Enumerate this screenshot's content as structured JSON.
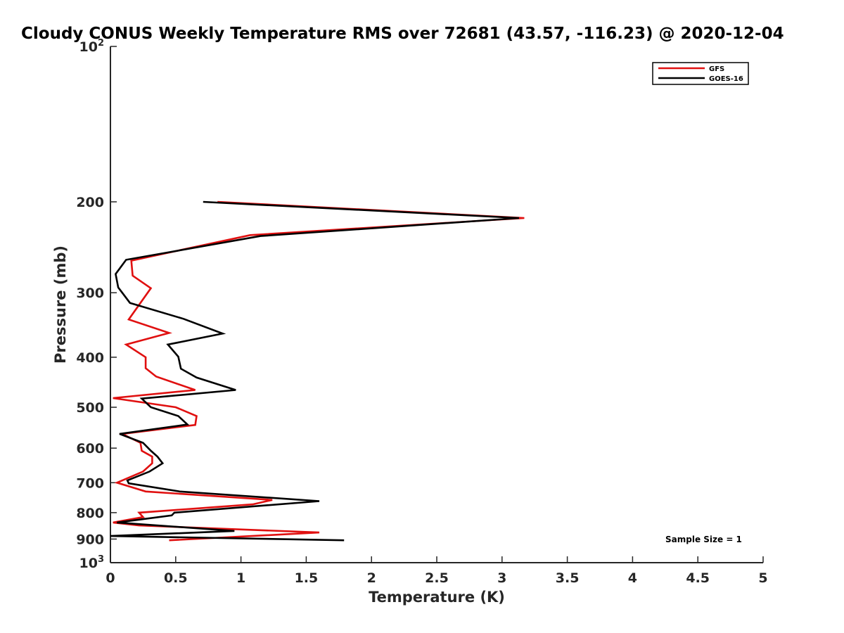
{
  "chart_data": {
    "type": "line",
    "title": "Cloudy CONUS Weekly Temperature RMS over 72681 (43.57, -116.23) @ 2020-12-04",
    "xlabel": "Temperature (K)",
    "ylabel": "Pressure (mb)",
    "xlim": [
      0,
      5
    ],
    "ylim": [
      100,
      1000
    ],
    "y_scale": "log",
    "y_reversed": true,
    "grid": false,
    "legend_position": "top-right",
    "x_ticks": [
      "0",
      "0.5",
      "1",
      "1.5",
      "2",
      "2.5",
      "3",
      "3.5",
      "4",
      "4.5",
      "5"
    ],
    "y_ticks": [
      {
        "value": 100,
        "base": "10",
        "exp": "2"
      },
      {
        "value": 200,
        "label": "200"
      },
      {
        "value": 300,
        "label": "300"
      },
      {
        "value": 400,
        "label": "400"
      },
      {
        "value": 500,
        "label": "500"
      },
      {
        "value": 600,
        "label": "600"
      },
      {
        "value": 700,
        "label": "700"
      },
      {
        "value": 800,
        "label": "800"
      },
      {
        "value": 900,
        "label": "900"
      },
      {
        "value": 1000,
        "base": "10",
        "exp": "3"
      }
    ],
    "annotation": "Sample Size = 1",
    "series": [
      {
        "name": "GFS",
        "color": "#e01010",
        "points": [
          [
            0.82,
            200
          ],
          [
            3.17,
            215
          ],
          [
            1.07,
            232
          ],
          [
            0.16,
            260
          ],
          [
            0.17,
            278
          ],
          [
            0.31,
            294
          ],
          [
            0.14,
            338
          ],
          [
            0.45,
            359
          ],
          [
            0.12,
            378
          ],
          [
            0.27,
            400
          ],
          [
            0.27,
            420
          ],
          [
            0.35,
            436
          ],
          [
            0.65,
            463
          ],
          [
            0.02,
            480
          ],
          [
            0.5,
            500
          ],
          [
            0.66,
            520
          ],
          [
            0.65,
            541
          ],
          [
            0.09,
            563
          ],
          [
            0.23,
            586
          ],
          [
            0.24,
            607
          ],
          [
            0.32,
            623
          ],
          [
            0.32,
            642
          ],
          [
            0.25,
            666
          ],
          [
            0.05,
            700
          ],
          [
            0.27,
            728
          ],
          [
            1.24,
            756
          ],
          [
            1.09,
            771
          ],
          [
            0.22,
            800
          ],
          [
            0.25,
            816
          ],
          [
            0.02,
            836
          ],
          [
            0.22,
            847
          ],
          [
            1.6,
            874
          ],
          [
            0.45,
            905
          ]
        ]
      },
      {
        "name": "GOES-16",
        "color": "#000000",
        "points": [
          [
            0.71,
            200
          ],
          [
            3.13,
            215
          ],
          [
            1.15,
            233
          ],
          [
            0.12,
            259
          ],
          [
            0.04,
            276
          ],
          [
            0.06,
            293
          ],
          [
            0.15,
            314
          ],
          [
            0.56,
            337
          ],
          [
            0.86,
            360
          ],
          [
            0.44,
            378
          ],
          [
            0.52,
            399
          ],
          [
            0.54,
            421
          ],
          [
            0.66,
            438
          ],
          [
            0.96,
            463
          ],
          [
            0.24,
            481
          ],
          [
            0.31,
            500
          ],
          [
            0.52,
            520
          ],
          [
            0.59,
            540
          ],
          [
            0.07,
            563
          ],
          [
            0.25,
            586
          ],
          [
            0.31,
            607
          ],
          [
            0.36,
            623
          ],
          [
            0.4,
            642
          ],
          [
            0.3,
            666
          ],
          [
            0.13,
            693
          ],
          [
            0.14,
            702
          ],
          [
            0.53,
            728
          ],
          [
            1.6,
            760
          ],
          [
            0.49,
            800
          ],
          [
            0.47,
            810
          ],
          [
            0.05,
            836
          ],
          [
            0.95,
            868
          ],
          [
            0.0,
            888
          ],
          [
            1.79,
            905
          ]
        ]
      }
    ]
  }
}
